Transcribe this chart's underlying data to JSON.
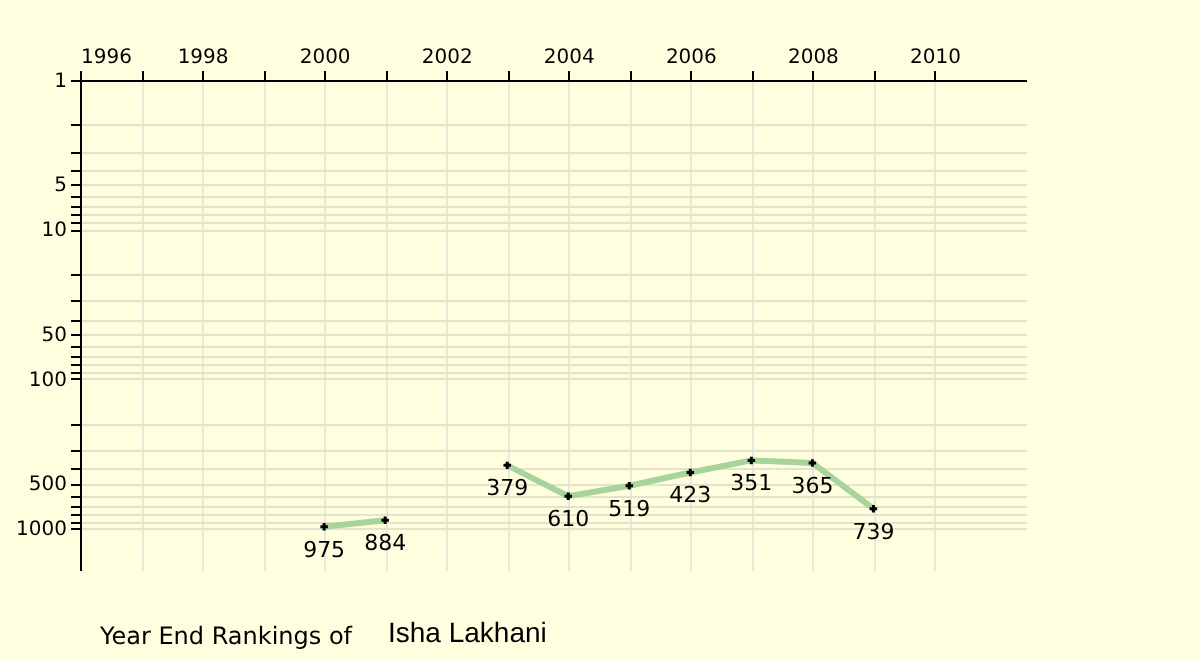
{
  "chart_data": {
    "type": "line",
    "title": "Year End Rankings of",
    "subtitle": "Isha Lakhani",
    "x": [
      2000,
      2001,
      2002,
      2003,
      2004,
      2005,
      2006,
      2007,
      2008,
      2009
    ],
    "series": [
      {
        "color": "#a8d49c",
        "values": [
          975,
          884,
          null,
          379,
          610,
          519,
          423,
          351,
          365,
          739
        ]
      }
    ],
    "xlim": [
      1996,
      2011.5
    ],
    "xticks": [
      1996,
      {
        "value": 1997,
        "label": null
      },
      1998,
      {
        "value": 1999,
        "label": null
      },
      2000,
      {
        "value": 2001,
        "label": null
      },
      2002,
      {
        "value": 2003,
        "label": null
      },
      2004,
      {
        "value": 2005,
        "label": null
      },
      2006,
      {
        "value": 2007,
        "label": null
      },
      2008,
      {
        "value": 2009,
        "label": null
      },
      2010
    ],
    "ylim": [
      1900,
      1
    ],
    "log": "y",
    "yticks": [
      1,
      {
        "value": 2,
        "label": null
      },
      {
        "value": 3,
        "label": null
      },
      {
        "value": 4,
        "label": null
      },
      5,
      {
        "value": 6,
        "label": null
      },
      {
        "value": 7,
        "label": null
      },
      {
        "value": 8,
        "label": null
      },
      {
        "value": 9,
        "label": null
      },
      10,
      {
        "value": 20,
        "label": null
      },
      {
        "value": 30,
        "label": null
      },
      {
        "value": 40,
        "label": null
      },
      50,
      {
        "value": 60,
        "label": null
      },
      {
        "value": 70,
        "label": null
      },
      {
        "value": 80,
        "label": null
      },
      {
        "value": 90,
        "label": null
      },
      100,
      {
        "value": 200,
        "label": null
      },
      {
        "value": 300,
        "label": null
      },
      {
        "value": 400,
        "label": null
      },
      500,
      {
        "value": 600,
        "label": null
      },
      {
        "value": 700,
        "label": null
      },
      {
        "value": 800,
        "label": null
      },
      {
        "value": 900,
        "label": null
      },
      1000
    ],
    "grid": true,
    "marker": "cross",
    "data_labels": true,
    "line_style": "solid"
  }
}
